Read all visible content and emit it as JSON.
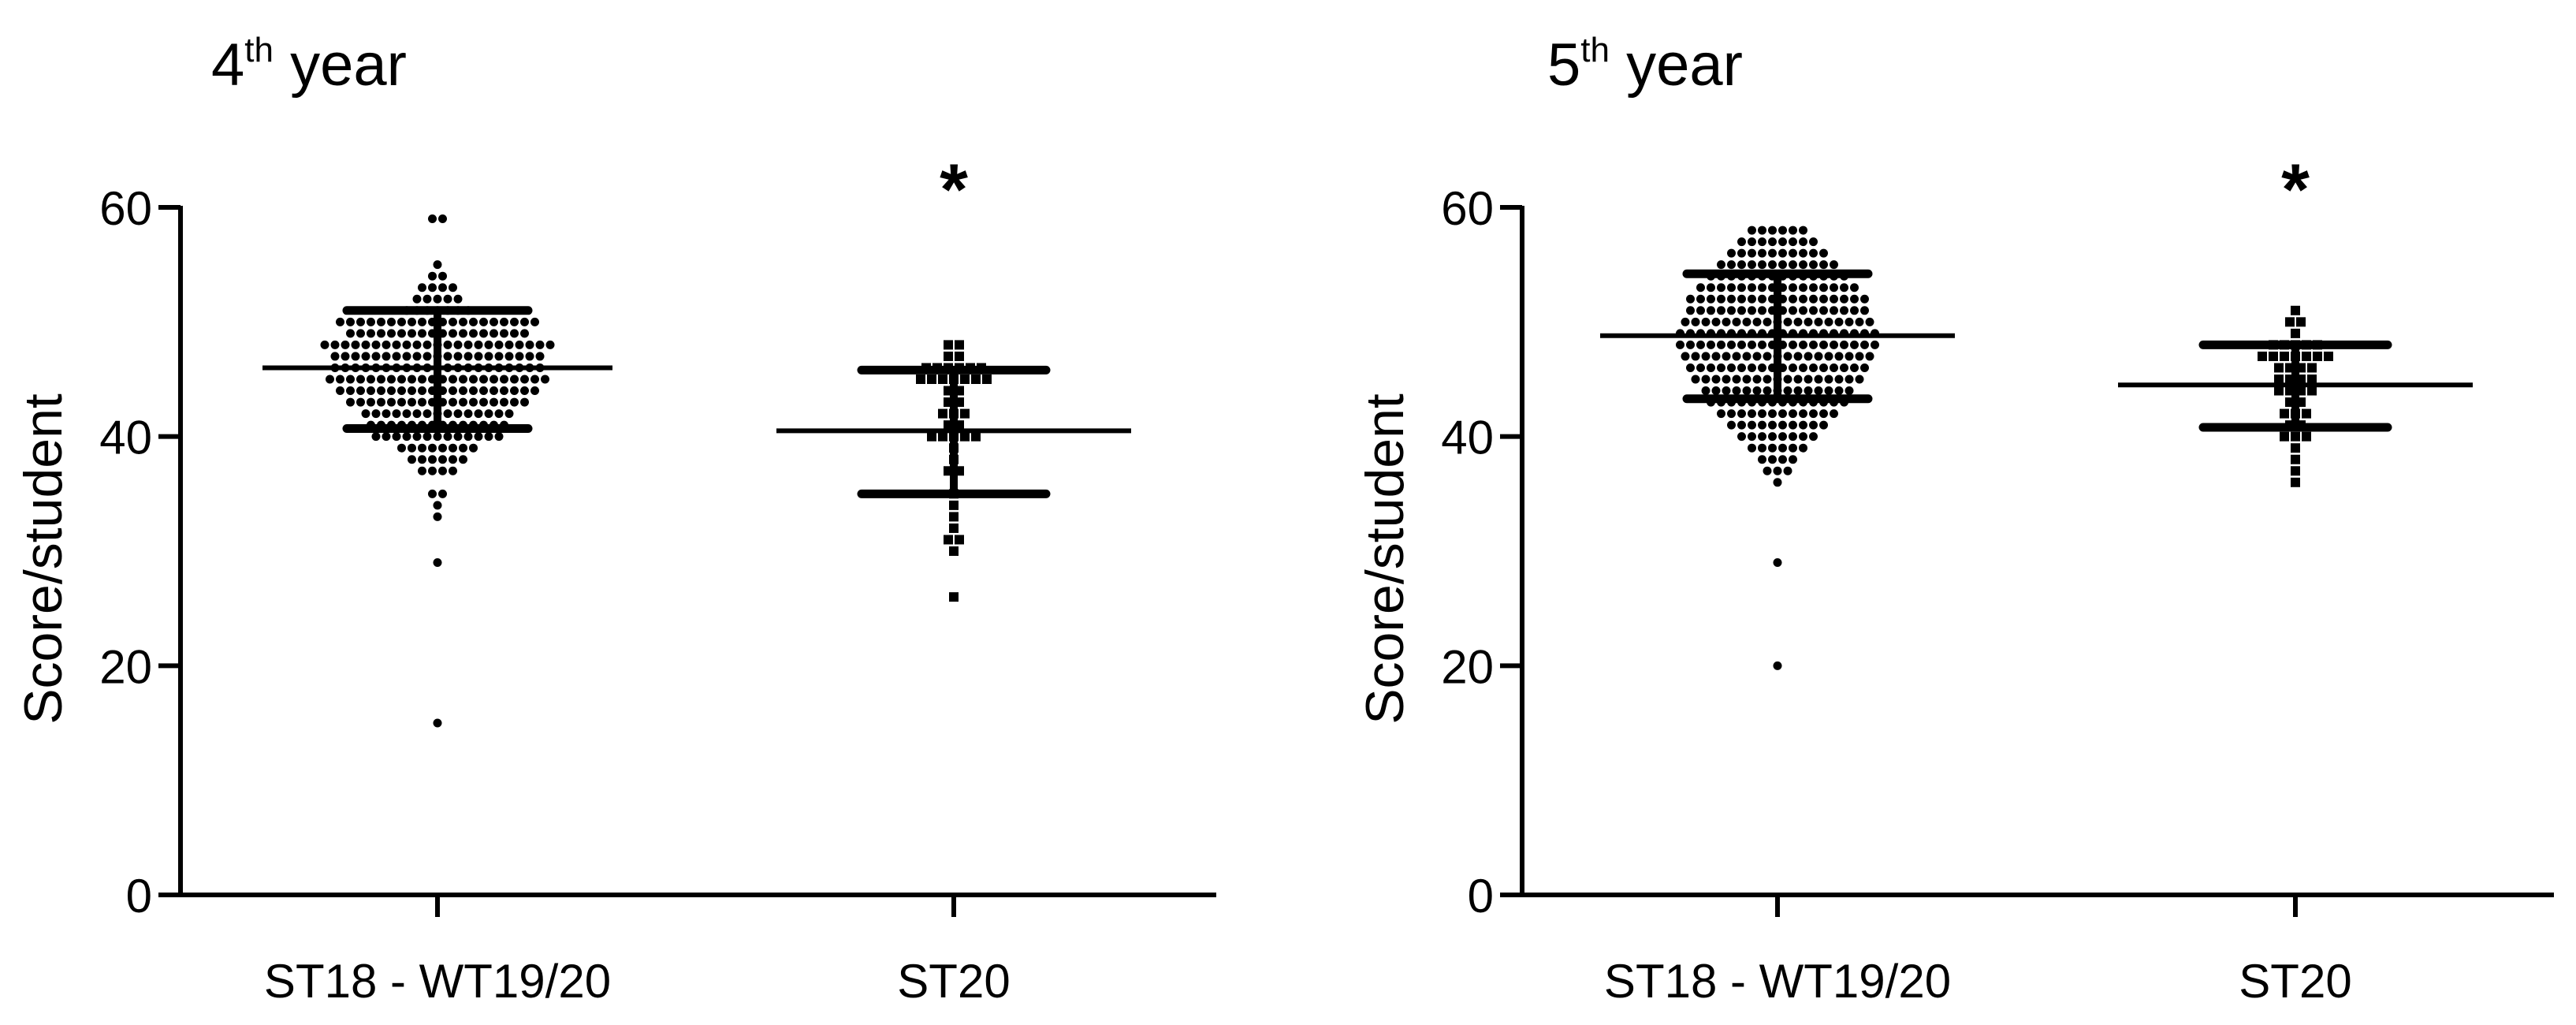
{
  "chart_data": [
    {
      "type": "scatter",
      "title_main": "4",
      "title_sup": "th",
      "title_rest": " year",
      "ylabel": "Score/student",
      "xlabel": "",
      "ylim": [
        0,
        60
      ],
      "yticks": [
        "0",
        "20",
        "40",
        "60"
      ],
      "categories": [
        "ST18 - WT19/20",
        "ST20"
      ],
      "significance_marker": {
        "category": "ST20",
        "text": "*"
      },
      "series": [
        {
          "name": "ST18 - WT19/20",
          "marker": "circle",
          "mean": 46,
          "sd_upper": 51,
          "sd_lower": 40.7,
          "values": [
            59,
            59,
            55,
            54,
            54,
            53,
            53,
            53,
            53,
            52,
            52,
            52,
            52,
            52,
            51,
            51,
            51,
            51,
            51,
            51,
            51,
            50,
            50,
            50,
            50,
            50,
            50,
            50,
            50,
            50,
            50,
            50,
            50,
            50,
            50,
            50,
            50,
            50,
            50,
            50,
            50,
            49,
            49,
            49,
            49,
            49,
            49,
            49,
            49,
            49,
            49,
            49,
            49,
            49,
            49,
            49,
            49,
            49,
            49,
            48,
            48,
            48,
            48,
            48,
            48,
            48,
            48,
            48,
            48,
            48,
            48,
            48,
            48,
            48,
            48,
            48,
            48,
            48,
            48,
            48,
            48,
            48,
            47,
            47,
            47,
            47,
            47,
            47,
            47,
            47,
            47,
            47,
            47,
            47,
            47,
            47,
            47,
            47,
            47,
            47,
            47,
            47,
            47,
            46,
            46,
            46,
            46,
            46,
            46,
            46,
            46,
            46,
            46,
            46,
            46,
            46,
            46,
            46,
            46,
            46,
            46,
            46,
            46,
            46,
            45,
            45,
            45,
            45,
            45,
            45,
            45,
            45,
            45,
            45,
            45,
            45,
            45,
            45,
            45,
            45,
            45,
            45,
            45,
            45,
            45,
            45,
            44,
            44,
            44,
            44,
            44,
            44,
            44,
            44,
            44,
            44,
            44,
            44,
            44,
            44,
            44,
            44,
            44,
            44,
            44,
            44,
            43,
            43,
            43,
            43,
            43,
            43,
            43,
            43,
            43,
            43,
            43,
            43,
            43,
            43,
            43,
            43,
            43,
            43,
            42,
            42,
            42,
            42,
            42,
            42,
            42,
            42,
            42,
            42,
            42,
            42,
            42,
            42,
            42,
            41,
            41,
            41,
            41,
            41,
            41,
            41,
            41,
            41,
            41,
            41,
            41,
            41,
            41,
            40,
            40,
            40,
            40,
            40,
            40,
            40,
            40,
            40,
            40,
            40,
            40,
            40,
            39,
            39,
            39,
            39,
            39,
            39,
            39,
            39,
            38,
            38,
            38,
            38,
            38,
            38,
            37,
            37,
            37,
            37,
            35,
            35,
            34,
            33,
            29,
            15
          ]
        },
        {
          "name": "ST20",
          "marker": "square",
          "mean": 40.5,
          "sd_upper": 45.8,
          "sd_lower": 35,
          "values": [
            48,
            48,
            47,
            47,
            46,
            46,
            46,
            46,
            46,
            46,
            45,
            45,
            45,
            45,
            45,
            45,
            45,
            44,
            44,
            43,
            43,
            42,
            42,
            42,
            41,
            41,
            40,
            40,
            40,
            40,
            40,
            39,
            38,
            37,
            37,
            35,
            34,
            33,
            32,
            31,
            31,
            30,
            26
          ]
        }
      ]
    },
    {
      "type": "scatter",
      "title_main": "5",
      "title_sup": "th",
      "title_rest": " year",
      "ylabel": "Score/student",
      "xlabel": "",
      "ylim": [
        0,
        60
      ],
      "yticks": [
        "0",
        "20",
        "40",
        "60"
      ],
      "categories": [
        "ST18 - WT19/20",
        "ST20"
      ],
      "significance_marker": {
        "category": "ST20",
        "text": "*"
      },
      "series": [
        {
          "name": "ST18 - WT19/20",
          "marker": "circle",
          "mean": 48.8,
          "sd_upper": 54.2,
          "sd_lower": 43.3,
          "values": [
            58,
            58,
            58,
            58,
            58,
            58,
            57,
            57,
            57,
            57,
            57,
            57,
            57,
            57,
            56,
            56,
            56,
            56,
            56,
            56,
            56,
            56,
            56,
            56,
            55,
            55,
            55,
            55,
            55,
            55,
            55,
            55,
            55,
            55,
            55,
            55,
            54,
            54,
            54,
            54,
            54,
            54,
            54,
            54,
            54,
            54,
            54,
            54,
            54,
            54,
            53,
            53,
            53,
            53,
            53,
            53,
            53,
            53,
            53,
            53,
            53,
            53,
            53,
            53,
            53,
            53,
            52,
            52,
            52,
            52,
            52,
            52,
            52,
            52,
            52,
            52,
            52,
            52,
            52,
            52,
            52,
            52,
            52,
            52,
            51,
            51,
            51,
            51,
            51,
            51,
            51,
            51,
            51,
            51,
            51,
            51,
            51,
            51,
            51,
            51,
            51,
            51,
            50,
            50,
            50,
            50,
            50,
            50,
            50,
            50,
            50,
            50,
            50,
            50,
            50,
            50,
            50,
            50,
            50,
            50,
            50,
            49,
            49,
            49,
            49,
            49,
            49,
            49,
            49,
            49,
            49,
            49,
            49,
            49,
            49,
            49,
            49,
            49,
            49,
            49,
            49,
            48,
            48,
            48,
            48,
            48,
            48,
            48,
            48,
            48,
            48,
            48,
            48,
            48,
            48,
            48,
            48,
            48,
            48,
            48,
            48,
            47,
            47,
            47,
            47,
            47,
            47,
            47,
            47,
            47,
            47,
            47,
            47,
            47,
            47,
            47,
            47,
            47,
            47,
            47,
            46,
            46,
            46,
            46,
            46,
            46,
            46,
            46,
            46,
            46,
            46,
            46,
            46,
            46,
            46,
            46,
            46,
            46,
            45,
            45,
            45,
            45,
            45,
            45,
            45,
            45,
            45,
            45,
            45,
            45,
            45,
            45,
            45,
            45,
            45,
            44,
            44,
            44,
            44,
            44,
            44,
            44,
            44,
            44,
            44,
            44,
            44,
            44,
            44,
            44,
            43,
            43,
            43,
            43,
            43,
            43,
            43,
            43,
            43,
            43,
            43,
            43,
            43,
            43,
            42,
            42,
            42,
            42,
            42,
            42,
            42,
            42,
            42,
            42,
            42,
            42,
            41,
            41,
            41,
            41,
            41,
            41,
            41,
            41,
            41,
            41,
            40,
            40,
            40,
            40,
            40,
            40,
            40,
            40,
            39,
            39,
            39,
            39,
            39,
            39,
            38,
            38,
            38,
            38,
            37,
            37,
            37,
            36,
            29,
            20
          ]
        },
        {
          "name": "ST20",
          "marker": "square",
          "mean": 44.5,
          "sd_upper": 48,
          "sd_lower": 40.8,
          "values": [
            51,
            50,
            50,
            49,
            48,
            48,
            48,
            48,
            48,
            47,
            47,
            47,
            47,
            47,
            47,
            47,
            46,
            46,
            46,
            46,
            45,
            45,
            45,
            45,
            44,
            44,
            44,
            44,
            43,
            43,
            42,
            42,
            42,
            41,
            41,
            40,
            40,
            40,
            39,
            38,
            37,
            36
          ]
        }
      ]
    }
  ]
}
